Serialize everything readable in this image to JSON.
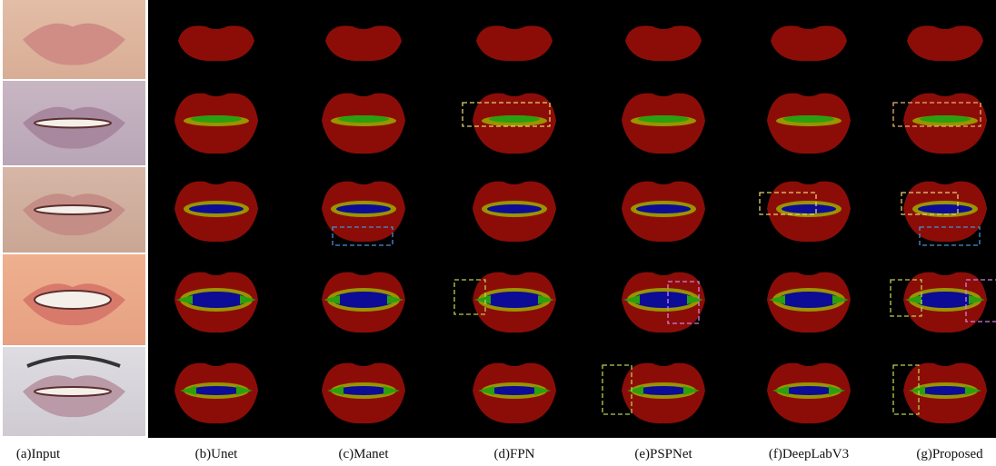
{
  "captions": [
    "(a)Input",
    "(b)Unet",
    "(c)Manet",
    "(d)FPN",
    "(e)PSPNet",
    "(f)DeepLabV3",
    "(g)Proposed"
  ]
}
